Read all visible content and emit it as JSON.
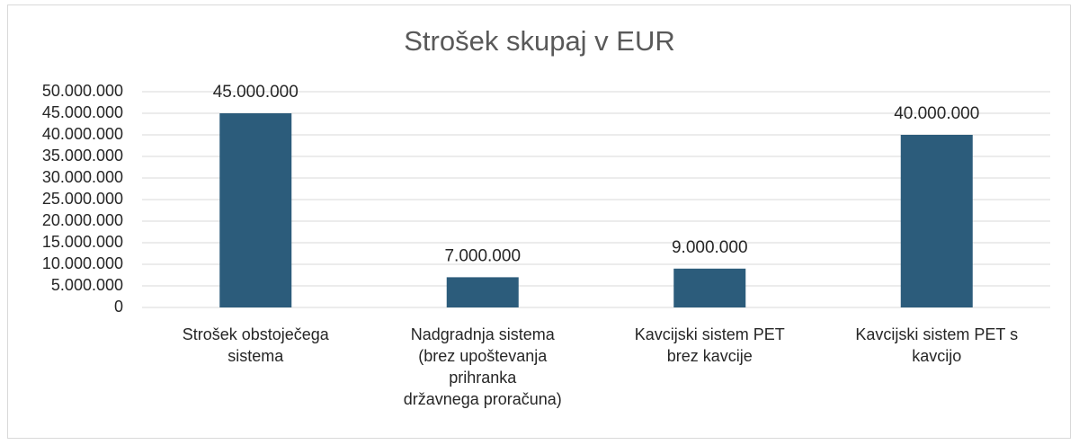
{
  "chart_data": {
    "type": "bar",
    "title": "Strošek skupaj v EUR",
    "categories": [
      "Strošek obstoječega\nsistema",
      "Nadgradnja sistema\n(brez upoštevanja\nprihranka\ndržavnega proračuna)",
      "Kavcijski sistem PET\nbrez kavcije",
      "Kavcijski sistem PET s\nkavcijo"
    ],
    "values": [
      45000000,
      7000000,
      9000000,
      40000000
    ],
    "value_labels": [
      "45.000.000",
      "7.000.000",
      "9.000.000",
      "40.000.000"
    ],
    "color": "#2c5c7b",
    "ylim": [
      0,
      50000000
    ],
    "yticks": [
      0,
      {
        "value": 5000000,
        "label": "5.000.000"
      },
      {
        "value": 10000000,
        "label": "10.000.000"
      },
      {
        "value": 15000000,
        "label": "15.000.000"
      },
      {
        "value": 20000000,
        "label": "20.000.000"
      },
      {
        "value": 25000000,
        "label": "25.000.000"
      },
      {
        "value": 30000000,
        "label": "30.000.000"
      },
      {
        "value": 35000000,
        "label": "35.000.000"
      },
      {
        "value": 40000000,
        "label": "40.000.000"
      },
      {
        "value": 45000000,
        "label": "45.000.000"
      },
      {
        "value": 50000000,
        "label": "50.000.000"
      }
    ],
    "grid": true
  }
}
